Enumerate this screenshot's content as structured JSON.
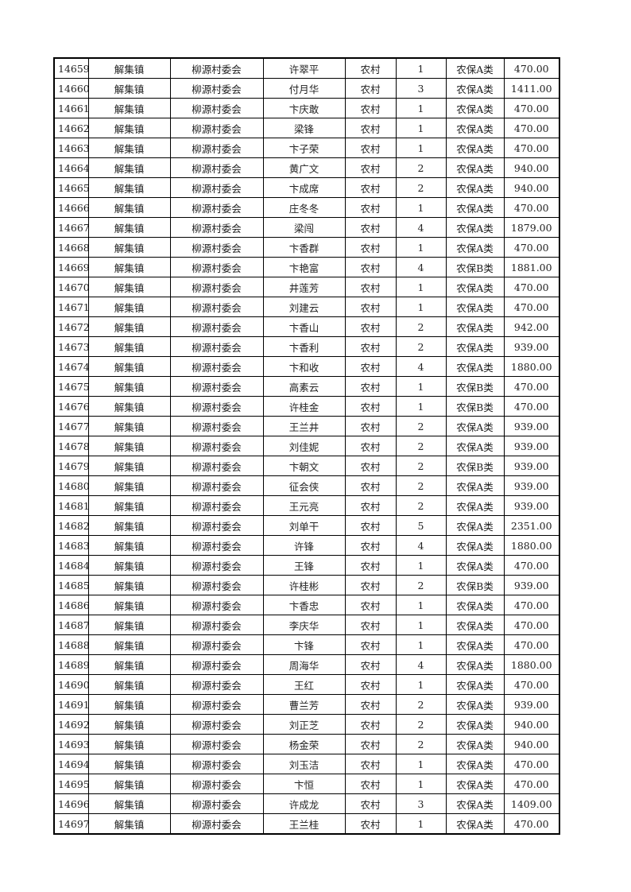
{
  "table": {
    "rows": [
      [
        "14659",
        "解集镇",
        "柳源村委会",
        "许翠平",
        "农村",
        "1",
        "农保A类",
        "470.00"
      ],
      [
        "14660",
        "解集镇",
        "柳源村委会",
        "付月华",
        "农村",
        "3",
        "农保A类",
        "1411.00"
      ],
      [
        "14661",
        "解集镇",
        "柳源村委会",
        "卞庆敢",
        "农村",
        "1",
        "农保A类",
        "470.00"
      ],
      [
        "14662",
        "解集镇",
        "柳源村委会",
        "梁锋",
        "农村",
        "1",
        "农保A类",
        "470.00"
      ],
      [
        "14663",
        "解集镇",
        "柳源村委会",
        "卞子荣",
        "农村",
        "1",
        "农保A类",
        "470.00"
      ],
      [
        "14664",
        "解集镇",
        "柳源村委会",
        "黄广文",
        "农村",
        "2",
        "农保A类",
        "940.00"
      ],
      [
        "14665",
        "解集镇",
        "柳源村委会",
        "卞成席",
        "农村",
        "2",
        "农保A类",
        "940.00"
      ],
      [
        "14666",
        "解集镇",
        "柳源村委会",
        "庄冬冬",
        "农村",
        "1",
        "农保A类",
        "470.00"
      ],
      [
        "14667",
        "解集镇",
        "柳源村委会",
        "梁闯",
        "农村",
        "4",
        "农保A类",
        "1879.00"
      ],
      [
        "14668",
        "解集镇",
        "柳源村委会",
        "卞香群",
        "农村",
        "1",
        "农保A类",
        "470.00"
      ],
      [
        "14669",
        "解集镇",
        "柳源村委会",
        "卞艳富",
        "农村",
        "4",
        "农保B类",
        "1881.00"
      ],
      [
        "14670",
        "解集镇",
        "柳源村委会",
        "井莲芳",
        "农村",
        "1",
        "农保A类",
        "470.00"
      ],
      [
        "14671",
        "解集镇",
        "柳源村委会",
        "刘建云",
        "农村",
        "1",
        "农保A类",
        "470.00"
      ],
      [
        "14672",
        "解集镇",
        "柳源村委会",
        "卞香山",
        "农村",
        "2",
        "农保A类",
        "942.00"
      ],
      [
        "14673",
        "解集镇",
        "柳源村委会",
        "卞香利",
        "农村",
        "2",
        "农保A类",
        "939.00"
      ],
      [
        "14674",
        "解集镇",
        "柳源村委会",
        "卞和收",
        "农村",
        "4",
        "农保A类",
        "1880.00"
      ],
      [
        "14675",
        "解集镇",
        "柳源村委会",
        "高素云",
        "农村",
        "1",
        "农保B类",
        "470.00"
      ],
      [
        "14676",
        "解集镇",
        "柳源村委会",
        "许桂金",
        "农村",
        "1",
        "农保B类",
        "470.00"
      ],
      [
        "14677",
        "解集镇",
        "柳源村委会",
        "王兰井",
        "农村",
        "2",
        "农保A类",
        "939.00"
      ],
      [
        "14678",
        "解集镇",
        "柳源村委会",
        "刘佳妮",
        "农村",
        "2",
        "农保A类",
        "939.00"
      ],
      [
        "14679",
        "解集镇",
        "柳源村委会",
        "卞朝文",
        "农村",
        "2",
        "农保B类",
        "939.00"
      ],
      [
        "14680",
        "解集镇",
        "柳源村委会",
        "征会侠",
        "农村",
        "2",
        "农保A类",
        "939.00"
      ],
      [
        "14681",
        "解集镇",
        "柳源村委会",
        "王元亮",
        "农村",
        "2",
        "农保A类",
        "939.00"
      ],
      [
        "14682",
        "解集镇",
        "柳源村委会",
        "刘单干",
        "农村",
        "5",
        "农保A类",
        "2351.00"
      ],
      [
        "14683",
        "解集镇",
        "柳源村委会",
        "许锋",
        "农村",
        "4",
        "农保A类",
        "1880.00"
      ],
      [
        "14684",
        "解集镇",
        "柳源村委会",
        "王锋",
        "农村",
        "1",
        "农保A类",
        "470.00"
      ],
      [
        "14685",
        "解集镇",
        "柳源村委会",
        "许桂彬",
        "农村",
        "2",
        "农保B类",
        "939.00"
      ],
      [
        "14686",
        "解集镇",
        "柳源村委会",
        "卞香忠",
        "农村",
        "1",
        "农保A类",
        "470.00"
      ],
      [
        "14687",
        "解集镇",
        "柳源村委会",
        "李庆华",
        "农村",
        "1",
        "农保A类",
        "470.00"
      ],
      [
        "14688",
        "解集镇",
        "柳源村委会",
        "卞锋",
        "农村",
        "1",
        "农保A类",
        "470.00"
      ],
      [
        "14689",
        "解集镇",
        "柳源村委会",
        "周海华",
        "农村",
        "4",
        "农保A类",
        "1880.00"
      ],
      [
        "14690",
        "解集镇",
        "柳源村委会",
        "王红",
        "农村",
        "1",
        "农保A类",
        "470.00"
      ],
      [
        "14691",
        "解集镇",
        "柳源村委会",
        "曹兰芳",
        "农村",
        "2",
        "农保A类",
        "939.00"
      ],
      [
        "14692",
        "解集镇",
        "柳源村委会",
        "刘正芝",
        "农村",
        "2",
        "农保A类",
        "940.00"
      ],
      [
        "14693",
        "解集镇",
        "柳源村委会",
        "杨金荣",
        "农村",
        "2",
        "农保A类",
        "940.00"
      ],
      [
        "14694",
        "解集镇",
        "柳源村委会",
        "刘玉洁",
        "农村",
        "1",
        "农保A类",
        "470.00"
      ],
      [
        "14695",
        "解集镇",
        "柳源村委会",
        "卞恒",
        "农村",
        "1",
        "农保A类",
        "470.00"
      ],
      [
        "14696",
        "解集镇",
        "柳源村委会",
        "许成龙",
        "农村",
        "3",
        "农保A类",
        "1409.00"
      ],
      [
        "14697",
        "解集镇",
        "柳源村委会",
        "王兰桂",
        "农村",
        "1",
        "农保A类",
        "470.00"
      ]
    ]
  }
}
